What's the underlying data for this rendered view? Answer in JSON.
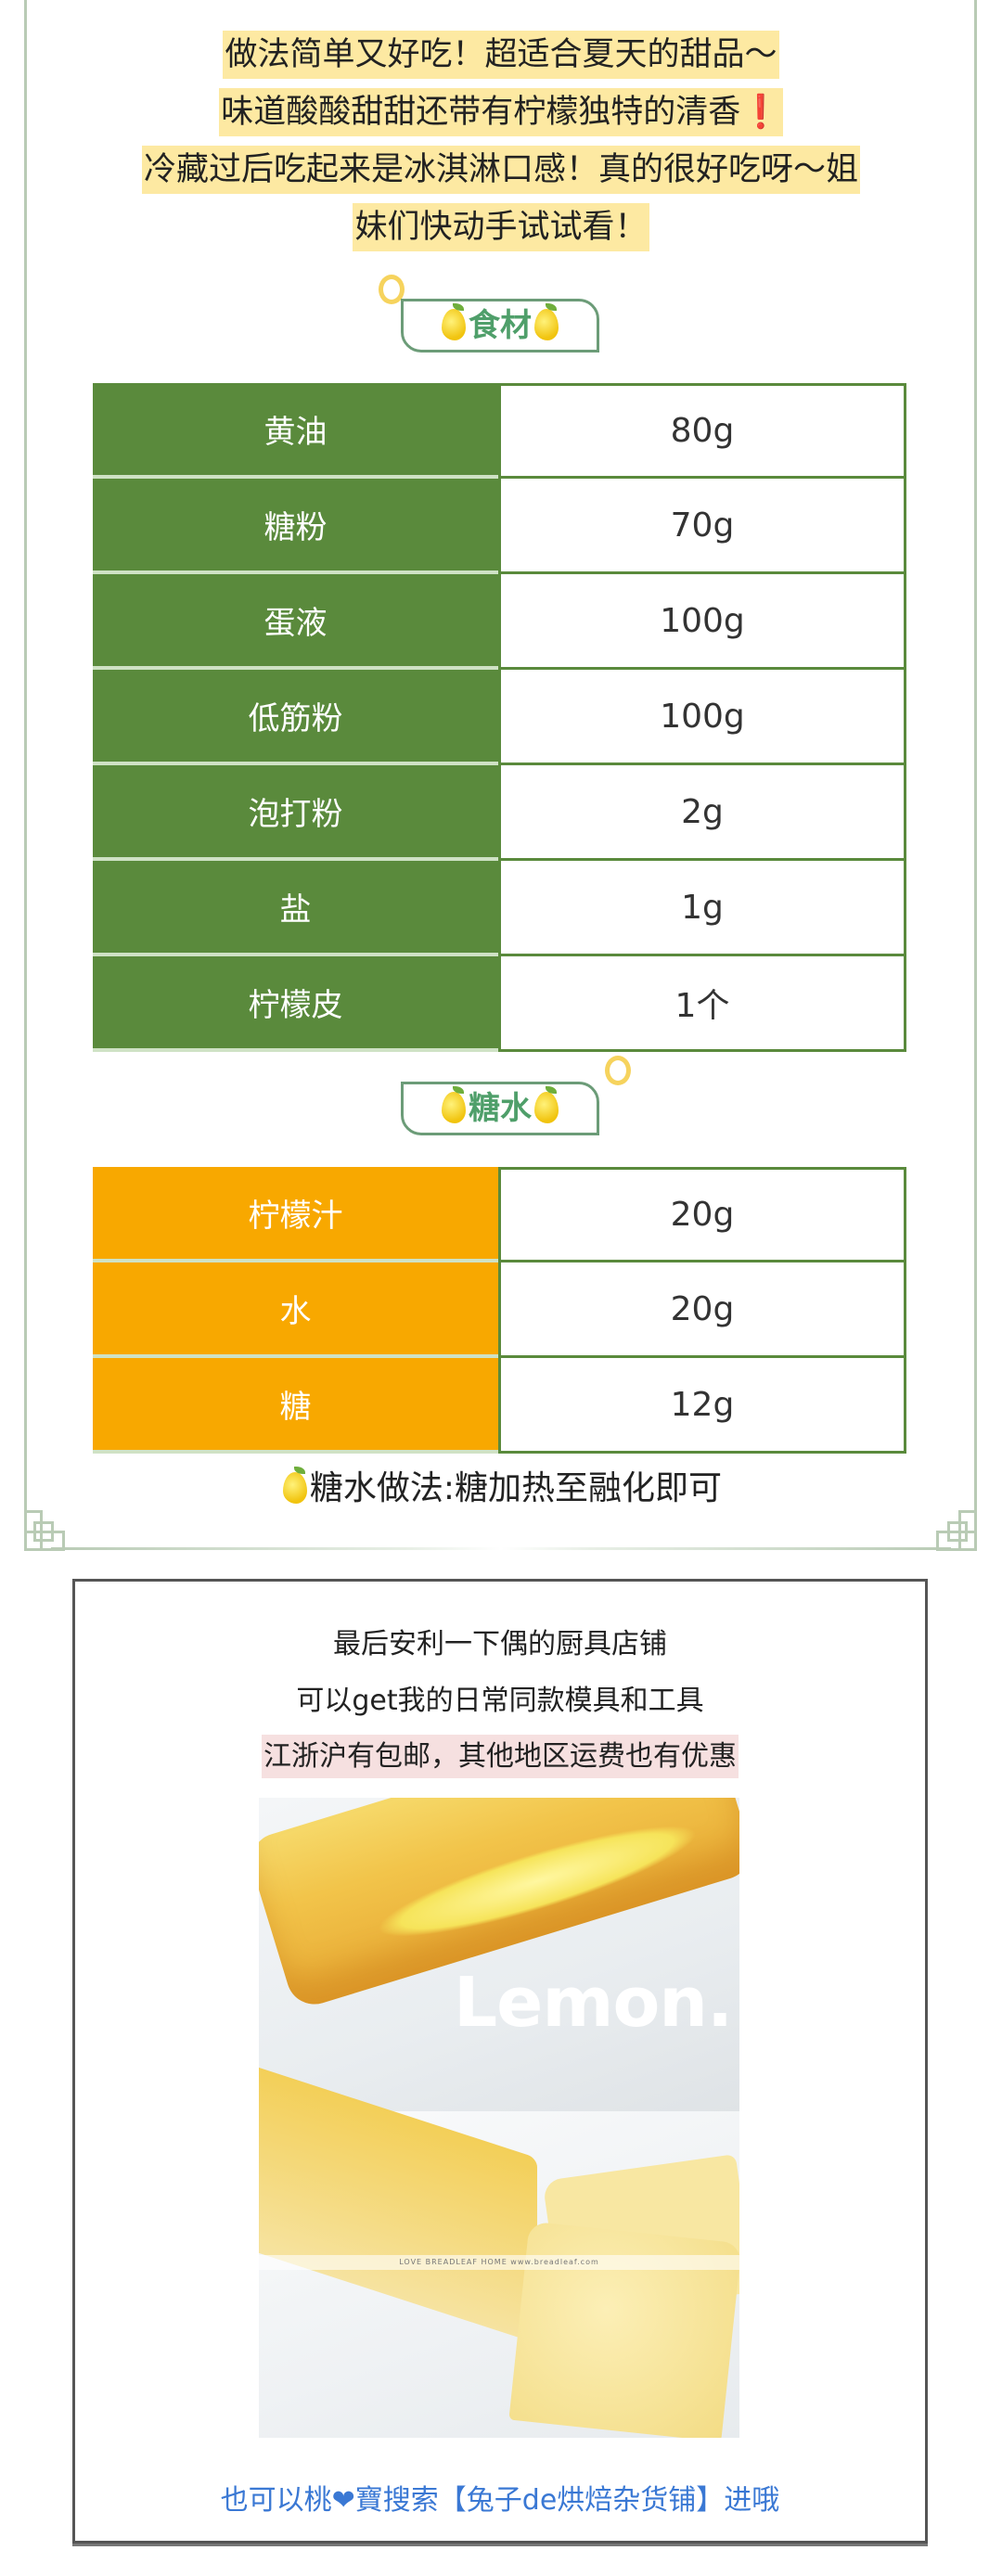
{
  "intro": {
    "lines": [
      "做法简单又好吃！超适合夏天的甜品～",
      "味道酸酸甜甜还带有柠檬独特的清香",
      "冷藏过后吃起来是冰淇淋口感！真的很好吃呀～姐",
      "妹们快动手试试看！"
    ],
    "exclamation": "❗"
  },
  "ingredients": {
    "title": "食材",
    "rows": [
      {
        "name": "黄油",
        "amount": "80g"
      },
      {
        "name": "糖粉",
        "amount": "70g"
      },
      {
        "name": "蛋液",
        "amount": "100g"
      },
      {
        "name": "低筋粉",
        "amount": "100g"
      },
      {
        "name": "泡打粉",
        "amount": "2g"
      },
      {
        "name": "盐",
        "amount": "1g"
      },
      {
        "name": "柠檬皮",
        "amount": "1个"
      }
    ]
  },
  "syrup": {
    "title": "糖水",
    "rows": [
      {
        "name": "柠檬汁",
        "amount": "20g"
      },
      {
        "name": "水",
        "amount": "20g"
      },
      {
        "name": "糖",
        "amount": "12g"
      }
    ],
    "note": "糖水做法:糖加热至融化即可"
  },
  "shop": {
    "line1": "最后安利一下偶的厨具店铺",
    "line2": "可以get我的日常同款模具和工具",
    "line3": "江浙沪有包邮，其他地区运费也有优惠",
    "photo_text": "Lemon.",
    "photo_watermark": "LOVE  BREADLEAF  HOME      www.breadleaf.com",
    "footer": "也可以桃❤寶搜索【兔子de烘焙杂货铺】进哦"
  },
  "colors": {
    "ingredient_green": "#5a8a3c",
    "syrup_orange": "#f8a800",
    "highlight_yellow": "#fde9a2",
    "tag_green": "#4f9f6a",
    "link_blue": "#3a78d4"
  }
}
